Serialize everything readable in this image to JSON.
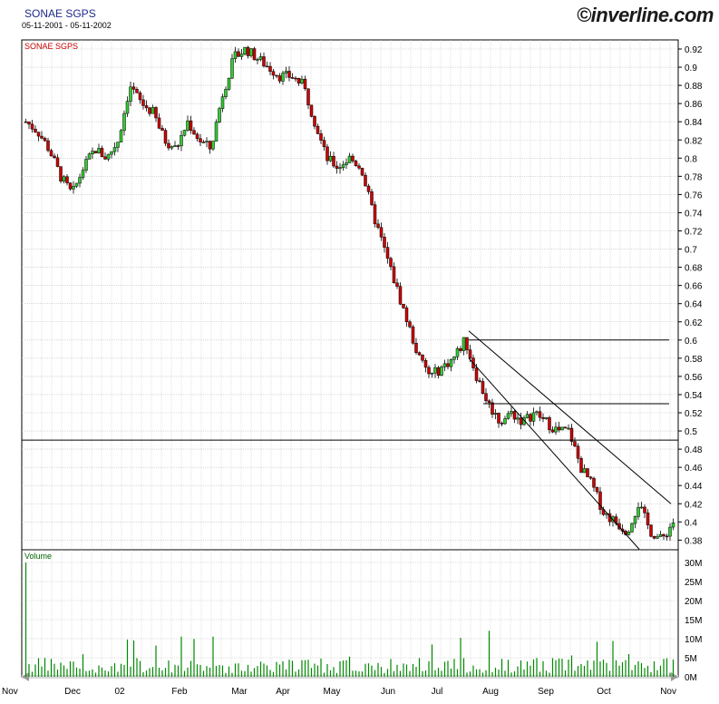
{
  "header": {
    "title": "SONAE SGPS",
    "date_range": "05-11-2001 - 05-11-2002",
    "brand": "©inverline.com"
  },
  "chart_data": {
    "type": "candlestick",
    "title": "SONAE SGPS",
    "price_panel_label": "SONAE SGPS",
    "volume_panel_label": "Volume",
    "price_ylim": [
      0.37,
      0.93
    ],
    "price_yticks": [
      "0.92",
      "0.9",
      "0.88",
      "0.86",
      "0.84",
      "0.82",
      "0.8",
      "0.78",
      "0.76",
      "0.74",
      "0.72",
      "0.7",
      "0.68",
      "0.66",
      "0.64",
      "0.62",
      "0.6",
      "0.58",
      "0.56",
      "0.54",
      "0.52",
      "0.5",
      "0.48",
      "0.46",
      "0.44",
      "0.42",
      "0.4",
      "0.38"
    ],
    "volume_ylim": [
      0,
      32
    ],
    "volume_unit": "M",
    "volume_yticks": [
      "30M",
      "25M",
      "20M",
      "15M",
      "10M",
      "5M",
      "0M"
    ],
    "x_labels": [
      "Nov",
      "Dec",
      "02",
      "Feb",
      "Mar",
      "Apr",
      "May",
      "Jun",
      "Jul",
      "Aug",
      "Sep",
      "Oct",
      "Nov"
    ],
    "grid": true,
    "close_series": [
      {
        "month": "Nov",
        "value": 0.84
      },
      {
        "month": "Nov",
        "value": 0.83
      },
      {
        "month": "Nov",
        "value": 0.81
      },
      {
        "month": "Dec",
        "value": 0.78
      },
      {
        "month": "Dec",
        "value": 0.76
      },
      {
        "month": "Dec",
        "value": 0.79
      },
      {
        "month": "Dec",
        "value": 0.81
      },
      {
        "month": "Dec",
        "value": 0.8
      },
      {
        "month": "02",
        "value": 0.82
      },
      {
        "month": "02",
        "value": 0.88
      },
      {
        "month": "02",
        "value": 0.86
      },
      {
        "month": "02",
        "value": 0.85
      },
      {
        "month": "Feb",
        "value": 0.82
      },
      {
        "month": "Feb",
        "value": 0.81
      },
      {
        "month": "Feb",
        "value": 0.84
      },
      {
        "month": "Feb",
        "value": 0.82
      },
      {
        "month": "Feb",
        "value": 0.81
      },
      {
        "month": "Mar",
        "value": 0.87
      },
      {
        "month": "Mar",
        "value": 0.91
      },
      {
        "month": "Mar",
        "value": 0.92
      },
      {
        "month": "Mar",
        "value": 0.91
      },
      {
        "month": "Apr",
        "value": 0.9
      },
      {
        "month": "Apr",
        "value": 0.89
      },
      {
        "month": "Apr",
        "value": 0.89
      },
      {
        "month": "Apr",
        "value": 0.88
      },
      {
        "month": "May",
        "value": 0.84
      },
      {
        "month": "May",
        "value": 0.8
      },
      {
        "month": "May",
        "value": 0.79
      },
      {
        "month": "May",
        "value": 0.8
      },
      {
        "month": "May",
        "value": 0.79
      },
      {
        "month": "Jun",
        "value": 0.74
      },
      {
        "month": "Jun",
        "value": 0.7
      },
      {
        "month": "Jun",
        "value": 0.66
      },
      {
        "month": "Jun",
        "value": 0.62
      },
      {
        "month": "Jun",
        "value": 0.58
      },
      {
        "month": "Jul",
        "value": 0.56
      },
      {
        "month": "Jul",
        "value": 0.57
      },
      {
        "month": "Jul",
        "value": 0.58
      },
      {
        "month": "Jul",
        "value": 0.6
      },
      {
        "month": "Jul",
        "value": 0.56
      },
      {
        "month": "Aug",
        "value": 0.53
      },
      {
        "month": "Aug",
        "value": 0.51
      },
      {
        "month": "Aug",
        "value": 0.52
      },
      {
        "month": "Aug",
        "value": 0.51
      },
      {
        "month": "Aug",
        "value": 0.52
      },
      {
        "month": "Sep",
        "value": 0.51
      },
      {
        "month": "Sep",
        "value": 0.5
      },
      {
        "month": "Sep",
        "value": 0.5
      },
      {
        "month": "Sep",
        "value": 0.46
      },
      {
        "month": "Sep",
        "value": 0.44
      },
      {
        "month": "Oct",
        "value": 0.41
      },
      {
        "month": "Oct",
        "value": 0.4
      },
      {
        "month": "Oct",
        "value": 0.39
      },
      {
        "month": "Oct",
        "value": 0.42
      },
      {
        "month": "Oct",
        "value": 0.39
      },
      {
        "month": "Nov",
        "value": 0.38
      },
      {
        "month": "Nov",
        "value": 0.4
      }
    ],
    "colors": {
      "up": "#33cc33",
      "down": "#cc0000",
      "volume": "#008800",
      "grid": "#c0c0c0"
    }
  }
}
